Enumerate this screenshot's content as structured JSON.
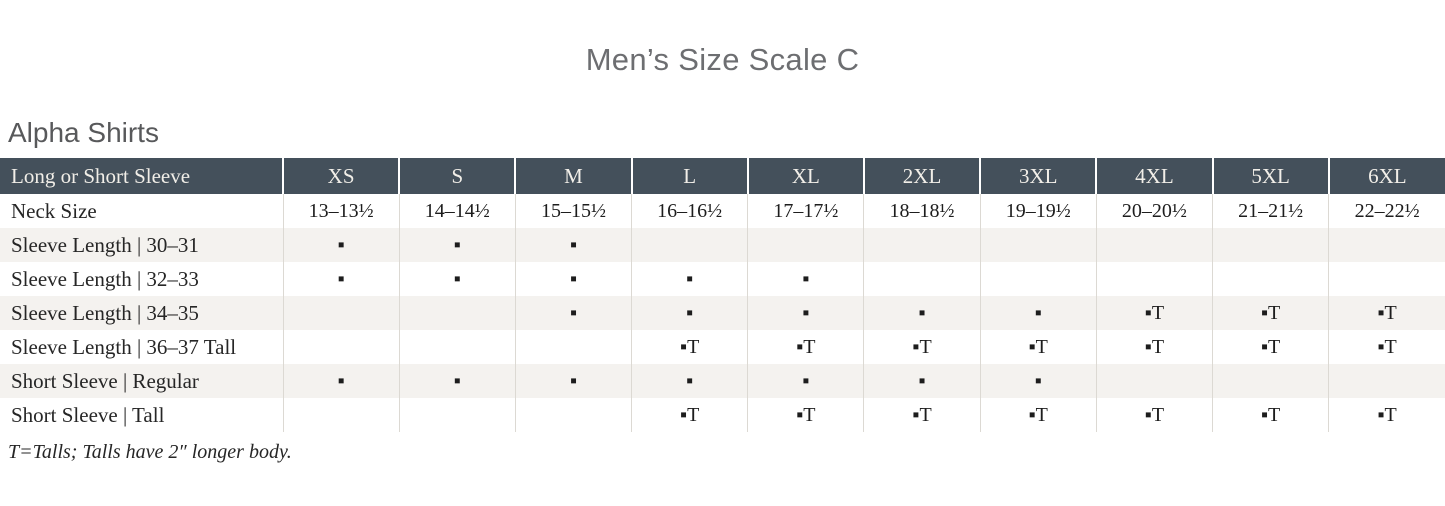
{
  "page": {
    "title": "Men’s Size Scale C",
    "section_heading": "Alpha Shirts",
    "footnote": "T=Talls; Talls have 2″ longer body."
  },
  "table": {
    "header": {
      "label": "Long or Short Sleeve",
      "sizes": [
        "XS",
        "S",
        "M",
        "L",
        "XL",
        "2XL",
        "3XL",
        "4XL",
        "5XL",
        "6XL"
      ]
    },
    "rows": [
      {
        "label": "Neck Size",
        "cells": [
          "13–13½",
          "14–14½",
          "15–15½",
          "16–16½",
          "17–17½",
          "18–18½",
          "19–19½",
          "20–20½",
          "21–21½",
          "22–22½"
        ]
      },
      {
        "label": "Sleeve Length  |  30–31",
        "cells": [
          "▪",
          "▪",
          "▪",
          "",
          "",
          "",
          "",
          "",
          "",
          ""
        ]
      },
      {
        "label": "Sleeve Length  |  32–33",
        "cells": [
          "▪",
          "▪",
          "▪",
          "▪",
          "▪",
          "",
          "",
          "",
          "",
          ""
        ]
      },
      {
        "label": "Sleeve Length  |  34–35",
        "cells": [
          "",
          "",
          "▪",
          "▪",
          "▪",
          "▪",
          "▪",
          "▪T",
          "▪T",
          "▪T"
        ]
      },
      {
        "label": "Sleeve Length  |  36–37 Tall",
        "cells": [
          "",
          "",
          "",
          "▪T",
          "▪T",
          "▪T",
          "▪T",
          "▪T",
          "▪T",
          "▪T"
        ]
      },
      {
        "label": "Short Sleeve  |  Regular",
        "cells": [
          "▪",
          "▪",
          "▪",
          "▪",
          "▪",
          "▪",
          "▪",
          "",
          "",
          ""
        ]
      },
      {
        "label": "Short Sleeve  |  Tall",
        "cells": [
          "",
          "",
          "",
          "▪T",
          "▪T",
          "▪T",
          "▪T",
          "▪T",
          "▪T",
          "▪T"
        ]
      }
    ],
    "legend": {
      "dot_mark": "▪",
      "tall_mark": "▪T"
    }
  },
  "colors": {
    "header_background": "#44505b",
    "header_text": "#f1eee8",
    "stripe_row_background": "#f4f2ef",
    "column_divider": "#dcd9d3",
    "title_text": "#6d6e71",
    "heading_text": "#58595b",
    "body_text": "#1d1d1d"
  }
}
